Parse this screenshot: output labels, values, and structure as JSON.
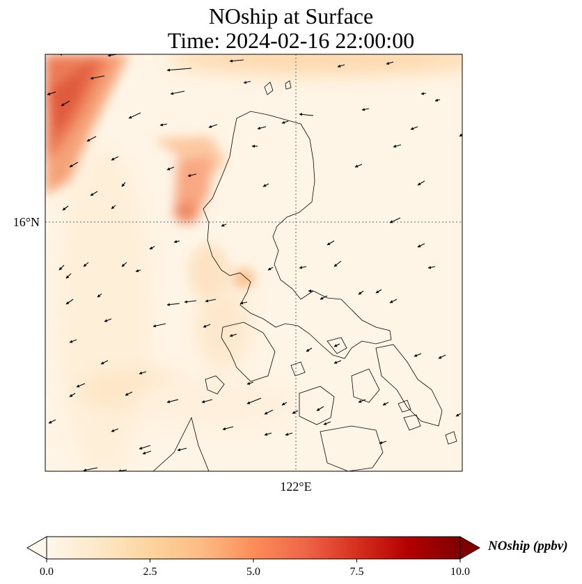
{
  "figure": {
    "title_line1": "NOship at Surface",
    "title_line2": "Time: 2024-02-16 22:00:00"
  },
  "map": {
    "lat_tick_label": "16°N",
    "lon_tick_label": "122°E",
    "gridlines": true
  },
  "colorbar": {
    "label": "NOship (ppbv)",
    "colormap": "OrRd",
    "min": 0.0,
    "max": 10.0,
    "extend": "both",
    "ticks": [
      "0.0",
      "2.5",
      "5.0",
      "7.5",
      "10.0"
    ],
    "colors": [
      "#fff7ec",
      "#fee8c8",
      "#fdd49e",
      "#fdbb84",
      "#fc8d59",
      "#ef6548",
      "#d7301f",
      "#b30000",
      "#7f0000"
    ]
  }
}
